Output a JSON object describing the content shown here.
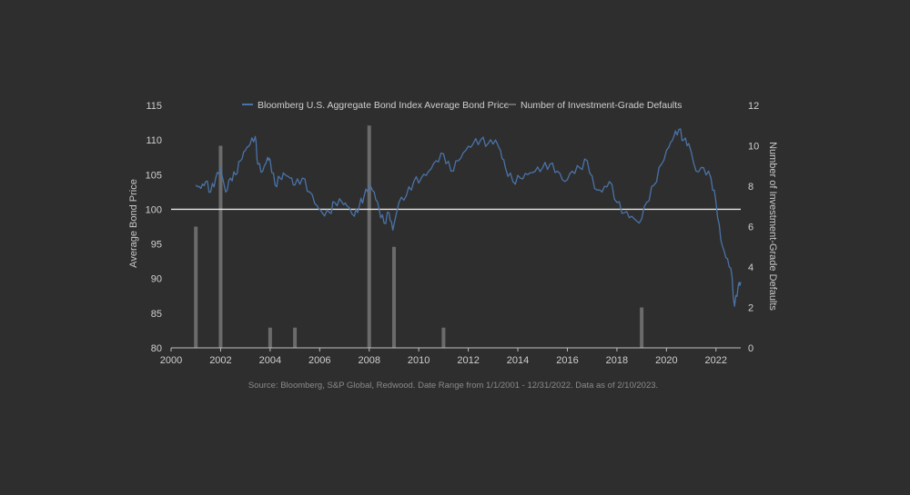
{
  "chart_data": {
    "type": "line",
    "title": "",
    "xlabel": "",
    "ylabel": "Average Bond Price",
    "y2label": "Number of Investment-Grade Defaults",
    "xlim": [
      2000,
      2023
    ],
    "ylim": [
      80,
      115
    ],
    "y2lim": [
      0,
      12
    ],
    "x_ticks": [
      "2000",
      "2002",
      "2004",
      "2006",
      "2008",
      "2010",
      "2012",
      "2014",
      "2016",
      "2018",
      "2020",
      "2022"
    ],
    "y_ticks": [
      "80",
      "85",
      "90",
      "95",
      "100",
      "105",
      "110",
      "115"
    ],
    "y2_ticks": [
      "0",
      "2",
      "4",
      "6",
      "8",
      "10",
      "12"
    ],
    "reference_line": 100,
    "legend_position": "top-center",
    "series": [
      {
        "name": "Bloomberg U.S. Aggregate Bond Index Average Bond Price",
        "type": "line",
        "axis": "left",
        "color": "#4a73a8",
        "x": [
          2001.0,
          2001.2,
          2001.4,
          2001.6,
          2001.8,
          2002.0,
          2002.2,
          2002.4,
          2002.6,
          2002.8,
          2003.0,
          2003.2,
          2003.4,
          2003.5,
          2003.7,
          2003.9,
          2004.0,
          2004.2,
          2004.4,
          2004.6,
          2004.8,
          2005.0,
          2005.3,
          2005.6,
          2005.9,
          2006.1,
          2006.4,
          2006.6,
          2006.9,
          2007.1,
          2007.4,
          2007.6,
          2007.8,
          2008.0,
          2008.2,
          2008.4,
          2008.6,
          2008.8,
          2008.95,
          2009.2,
          2009.5,
          2009.8,
          2010.1,
          2010.4,
          2010.7,
          2011.0,
          2011.3,
          2011.6,
          2011.9,
          2012.2,
          2012.5,
          2012.8,
          2013.1,
          2013.3,
          2013.5,
          2013.8,
          2014.1,
          2014.4,
          2014.7,
          2015.0,
          2015.3,
          2015.6,
          2015.9,
          2016.2,
          2016.5,
          2016.8,
          2017.1,
          2017.4,
          2017.7,
          2018.0,
          2018.3,
          2018.6,
          2018.9,
          2019.2,
          2019.5,
          2019.8,
          2020.1,
          2020.3,
          2020.5,
          2020.7,
          2020.9,
          2021.2,
          2021.5,
          2021.8,
          2022.0,
          2022.2,
          2022.4,
          2022.6,
          2022.75,
          2022.9,
          2023.0
        ],
        "y": [
          103.5,
          103.0,
          104.0,
          102.5,
          104.5,
          106.0,
          102.5,
          104.5,
          105.0,
          107.0,
          108.5,
          109.5,
          110.5,
          106.5,
          105.5,
          107.5,
          107.0,
          103.5,
          104.5,
          105.0,
          104.5,
          103.5,
          104.5,
          102.5,
          100.5,
          99.5,
          99.5,
          101.0,
          101.0,
          100.5,
          99.0,
          100.5,
          102.0,
          103.5,
          102.5,
          100.0,
          98.0,
          99.5,
          97.0,
          101.0,
          102.0,
          104.0,
          104.5,
          105.5,
          107.0,
          108.0,
          105.5,
          107.0,
          108.5,
          109.5,
          110.0,
          109.5,
          110.0,
          108.5,
          106.0,
          104.0,
          104.5,
          105.0,
          105.5,
          106.0,
          106.5,
          105.5,
          104.0,
          105.5,
          106.0,
          107.0,
          103.0,
          102.5,
          104.0,
          101.0,
          99.5,
          99.0,
          98.0,
          101.0,
          103.5,
          106.5,
          109.0,
          110.5,
          111.5,
          110.0,
          109.5,
          105.5,
          106.0,
          104.5,
          101.0,
          95.5,
          93.0,
          91.5,
          86.0,
          89.0,
          89.5
        ]
      },
      {
        "name": "Number of Investment-Grade Defaults",
        "type": "bar",
        "axis": "right",
        "color": "#6b6b6b",
        "x": [
          2001.0,
          2002.0,
          2004.0,
          2005.0,
          2008.0,
          2009.0,
          2011.0,
          2019.0
        ],
        "values": [
          6,
          10,
          1,
          1,
          11,
          5,
          1,
          2
        ]
      }
    ]
  },
  "source_note": "Source: Bloomberg, S&P Global, Redwood. Date Range from 1/1/2001 - 12/31/2022. Data as of 2/10/2023."
}
